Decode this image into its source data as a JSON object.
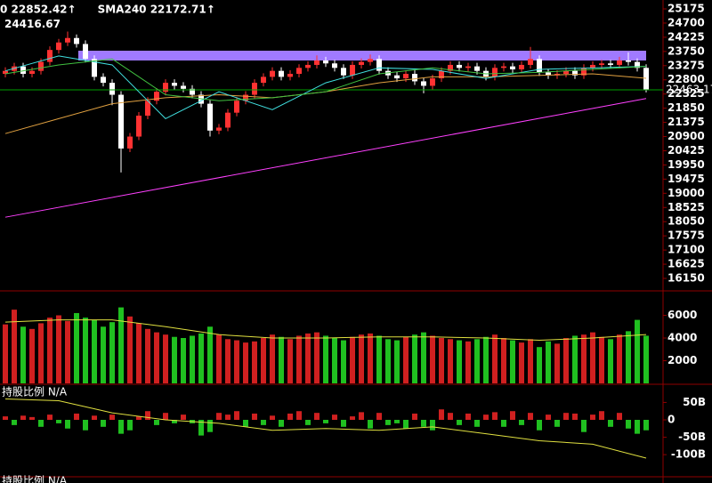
{
  "chart_data": [
    {
      "type": "candlestick",
      "ylim": [
        15763,
        25473
      ],
      "yticks": [
        25175,
        24700,
        24225,
        23750,
        23275,
        22800,
        22325,
        21850,
        21375,
        20900,
        20425,
        19950,
        19475,
        19000,
        18525,
        18050,
        17575,
        17100,
        16625,
        16150
      ],
      "up_color": "#ff3232",
      "down_color": "#ffffff",
      "open": [
        23000,
        23100,
        23250,
        23000,
        23100,
        23400,
        23800,
        24050,
        24200,
        24000,
        23500,
        22900,
        22700,
        22300,
        20500,
        20900,
        21600,
        22100,
        22400,
        22700,
        22600,
        22500,
        22300,
        22000,
        21100,
        21200,
        21700,
        22100,
        22300,
        22700,
        22900,
        23100,
        22900,
        23000,
        23200,
        23300,
        23450,
        23350,
        23200,
        22950,
        23300,
        23400,
        23500,
        23100,
        22950,
        22850,
        23000,
        22750,
        22600,
        22850,
        23100,
        23300,
        23200,
        23250,
        23100,
        22900,
        23200,
        23250,
        23150,
        23300,
        23500,
        23050,
        22950,
        23000,
        23100,
        22950,
        23200,
        23300,
        23350,
        23300,
        23450,
        23400,
        23200
      ],
      "high": [
        23220,
        23370,
        23370,
        23220,
        23520,
        23920,
        24170,
        24416.67,
        24320,
        24120,
        23620,
        23020,
        22820,
        22420,
        21020,
        21720,
        22220,
        22520,
        22820,
        22820,
        22720,
        22620,
        22420,
        22120,
        21320,
        21820,
        22220,
        22420,
        22820,
        23020,
        23220,
        23220,
        23120,
        23320,
        23420,
        23620,
        23570,
        23470,
        23320,
        23420,
        23520,
        23650,
        23620,
        23220,
        23070,
        23120,
        23120,
        22870,
        22970,
        23220,
        23420,
        23420,
        23370,
        23370,
        23220,
        23320,
        23370,
        23370,
        23420,
        23900,
        23620,
        23170,
        23120,
        23220,
        23220,
        23320,
        23420,
        23470,
        23470,
        23570,
        23720,
        23520,
        23320
      ],
      "low": [
        22880,
        22980,
        22880,
        22880,
        22980,
        23280,
        23680,
        23930,
        23880,
        23380,
        22780,
        22580,
        21950,
        19700,
        20380,
        20780,
        21480,
        21980,
        22280,
        22480,
        22380,
        22180,
        21880,
        20900,
        20980,
        21080,
        21580,
        21980,
        22180,
        22580,
        22780,
        22780,
        22780,
        22880,
        23080,
        23180,
        23230,
        23080,
        22830,
        22830,
        23180,
        23280,
        22980,
        22830,
        22730,
        22730,
        22630,
        22350,
        22480,
        22730,
        22980,
        23080,
        23080,
        22980,
        22780,
        22780,
        23080,
        23030,
        23030,
        23180,
        22930,
        22830,
        22830,
        22880,
        22830,
        22830,
        23080,
        23180,
        23180,
        23180,
        23280,
        23080,
        22380
      ],
      "close": [
        23100,
        23250,
        23000,
        23100,
        23400,
        23800,
        24050,
        24200,
        24000,
        23500,
        22900,
        22700,
        22300,
        20500,
        20900,
        21600,
        22100,
        22400,
        22700,
        22600,
        22500,
        22300,
        22000,
        21100,
        21200,
        21700,
        22100,
        22300,
        22700,
        22900,
        23100,
        22900,
        23000,
        23200,
        23300,
        23450,
        23350,
        23200,
        22950,
        23300,
        23400,
        23500,
        23100,
        22950,
        22850,
        23000,
        22750,
        22600,
        22850,
        23100,
        23300,
        23200,
        23250,
        23100,
        22900,
        23200,
        23250,
        23150,
        23300,
        23500,
        23050,
        22950,
        23000,
        23100,
        22950,
        23200,
        23300,
        23350,
        23300,
        23450,
        23400,
        23200,
        22463.17
      ],
      "series": [
        {
          "name": "0 22852.42↑",
          "color": "#e0a040",
          "x": [
            0,
            6,
            12,
            18,
            24,
            30,
            36,
            42,
            48,
            54,
            60,
            66,
            72
          ],
          "values": [
            21000,
            21500,
            22000,
            22200,
            22300,
            22200,
            22400,
            22700,
            22900,
            22900,
            22950,
            23000,
            22852.42
          ]
        },
        {
          "name": "SMA240 22172.71↑",
          "color": "#ff40ff",
          "x": [
            0,
            72
          ],
          "values": [
            18200,
            22172.71
          ]
        },
        {
          "color": "#40e0e0",
          "x": [
            0,
            6,
            12,
            18,
            24,
            30,
            36,
            42,
            48,
            54,
            60,
            66,
            72
          ],
          "values": [
            23100,
            23600,
            23300,
            21500,
            22400,
            21800,
            22700,
            23200,
            23150,
            22850,
            23150,
            23200,
            23250
          ]
        },
        {
          "color": "#40c040",
          "x": [
            0,
            6,
            12,
            18,
            24,
            30,
            36,
            42,
            48,
            54,
            60,
            66,
            72
          ],
          "values": [
            23000,
            23300,
            23500,
            22300,
            22100,
            22200,
            22400,
            23000,
            23200,
            23000,
            23050,
            23150,
            23250
          ]
        }
      ]
    },
    {
      "type": "bar",
      "ylim": [
        0,
        7530
      ],
      "yticks": [
        6000,
        4000,
        2000
      ],
      "values": [
        5200,
        6500,
        5000,
        4800,
        5300,
        5800,
        6000,
        5500,
        6200,
        5800,
        5600,
        5000,
        5400,
        6700,
        5900,
        5300,
        4800,
        4500,
        4300,
        4100,
        4000,
        4200,
        4400,
        5000,
        4300,
        3900,
        3800,
        3600,
        3700,
        4000,
        4300,
        4100,
        3900,
        4200,
        4400,
        4500,
        4200,
        4000,
        3800,
        4100,
        4300,
        4400,
        4200,
        3900,
        3800,
        4100,
        4300,
        4500,
        4200,
        4000,
        3900,
        3800,
        3700,
        3900,
        4100,
        4300,
        4000,
        3800,
        3600,
        3900,
        3200,
        3700,
        3500,
        4000,
        4200,
        4300,
        4500,
        4100,
        3900,
        4300,
        4600,
        5600,
        4200
      ],
      "series": [
        {
          "color": "#e0e040",
          "x": [
            0,
            6,
            12,
            18,
            24,
            30,
            36,
            42,
            48,
            54,
            60,
            66,
            72
          ],
          "values": [
            5400,
            5600,
            5600,
            5000,
            4300,
            4000,
            4000,
            4100,
            4100,
            4000,
            3800,
            4000,
            4300
          ]
        }
      ]
    },
    {
      "type": "bar",
      "title": "持股比例 N/A",
      "ylim": [
        -161,
        92
      ],
      "yticks": [
        {
          "value": 50,
          "label": "50B"
        },
        0,
        {
          "value": -50,
          "label": "-50B"
        },
        {
          "value": -100,
          "label": "-100B"
        }
      ],
      "color_by": "sign",
      "values": [
        10,
        -15,
        12,
        8,
        -20,
        15,
        -10,
        -25,
        18,
        -30,
        12,
        -20,
        15,
        -40,
        -30,
        10,
        25,
        -15,
        20,
        -10,
        15,
        -10,
        -45,
        -35,
        20,
        15,
        25,
        -20,
        18,
        -15,
        12,
        -20,
        18,
        25,
        -15,
        20,
        -10,
        15,
        -20,
        10,
        22,
        -25,
        20,
        -15,
        -10,
        -25,
        18,
        -20,
        -30,
        30,
        20,
        -15,
        18,
        -20,
        15,
        22,
        -20,
        25,
        -15,
        20,
        -30,
        15,
        -20,
        20,
        18,
        -35,
        15,
        25,
        -20,
        20,
        -25,
        -40,
        -30
      ],
      "series": [
        {
          "color": "#e0e040",
          "x": [
            0,
            6,
            12,
            18,
            24,
            30,
            36,
            42,
            48,
            54,
            60,
            66,
            72
          ],
          "values": [
            60,
            55,
            20,
            0,
            -10,
            -30,
            -25,
            -30,
            -20,
            -40,
            -60,
            -70,
            -110
          ]
        }
      ]
    }
  ],
  "footer_label": "持股比例 N/A"
}
